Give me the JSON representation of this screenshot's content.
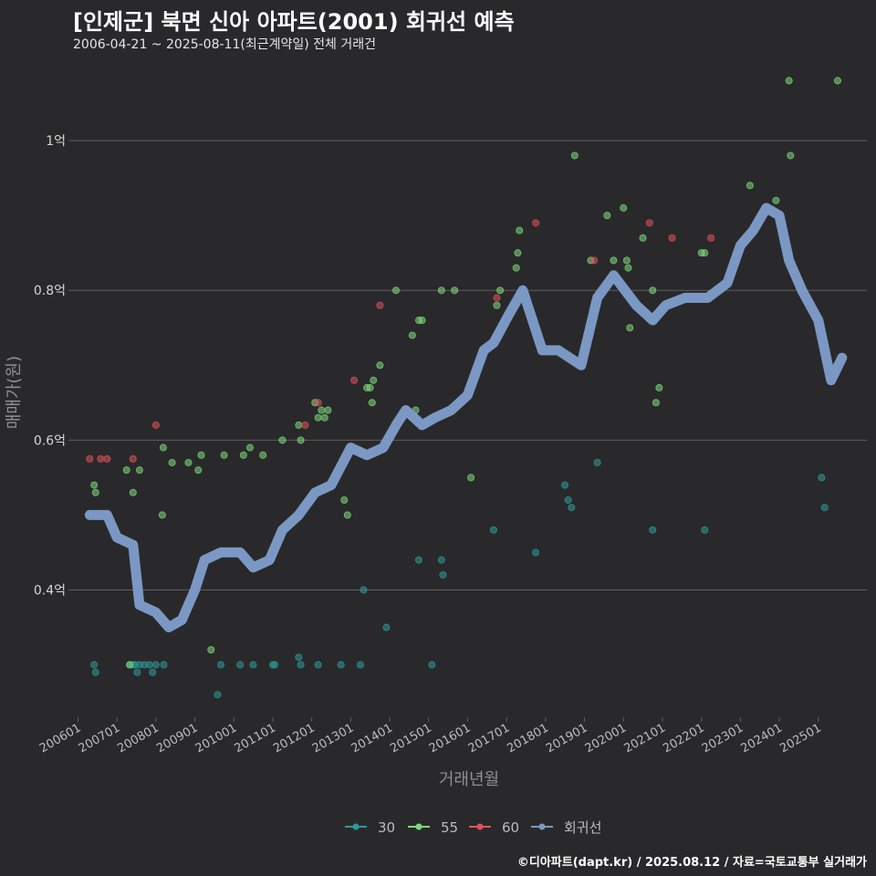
{
  "header": {
    "title": "[인제군] 북면 신아 아파트(2001) 회귀선 예측",
    "subtitle": "2006-04-21 ~ 2025-08-11(최근계약일) 전체 거래건"
  },
  "footer": {
    "credit": "©디아파트(dapt.kr) / 2025.08.12 / 자료=국토교통부 실거래가"
  },
  "colors": {
    "background": "#29292b",
    "grid": "#5e5e5e",
    "s30": "#2e9a95",
    "s55": "#7ed97a",
    "s60": "#e0525a",
    "regression": "#7b98c4"
  },
  "chart_data": {
    "type": "scatter",
    "title": "[인제군] 북면 신아 아파트(2001) 회귀선 예측",
    "subtitle": "2006-04-21 ~ 2025-08-11(최근계약일) 전체 거래건",
    "xlabel": "거래년월",
    "ylabel": "매매가(원)",
    "xlim": [
      "2005-11-15",
      "2026-04-01"
    ],
    "ylim": [
      0.23,
      1.1
    ],
    "yunit": "억",
    "yticks": [
      {
        "value": 0.4,
        "label": "0.4억"
      },
      {
        "value": 0.6,
        "label": "0.6억"
      },
      {
        "value": 0.8,
        "label": "0.8억"
      },
      {
        "value": 1.0,
        "label": "1억"
      }
    ],
    "xticks": [
      {
        "date": "2006-01-01",
        "label": "200601"
      },
      {
        "date": "2007-01-01",
        "label": "200701"
      },
      {
        "date": "2008-01-01",
        "label": "200801"
      },
      {
        "date": "2009-01-01",
        "label": "200901"
      },
      {
        "date": "2010-01-01",
        "label": "201001"
      },
      {
        "date": "2011-01-01",
        "label": "201101"
      },
      {
        "date": "2012-01-01",
        "label": "201201"
      },
      {
        "date": "2013-01-01",
        "label": "201301"
      },
      {
        "date": "2014-01-01",
        "label": "201401"
      },
      {
        "date": "2015-01-01",
        "label": "201501"
      },
      {
        "date": "2016-01-01",
        "label": "201601"
      },
      {
        "date": "2017-01-01",
        "label": "201701"
      },
      {
        "date": "2018-01-01",
        "label": "201801"
      },
      {
        "date": "2019-01-01",
        "label": "201901"
      },
      {
        "date": "2020-01-01",
        "label": "202001"
      },
      {
        "date": "2021-01-01",
        "label": "202101"
      },
      {
        "date": "2022-01-01",
        "label": "202201"
      },
      {
        "date": "2023-01-01",
        "label": "202301"
      },
      {
        "date": "2024-01-01",
        "label": "202401"
      },
      {
        "date": "2025-01-01",
        "label": "202501"
      }
    ],
    "grid": true,
    "legend_position": "bottom",
    "series": [
      {
        "name": "30",
        "kind": "points",
        "points": [
          [
            "2006-06-01",
            0.3
          ],
          [
            "2006-06-15",
            0.29
          ],
          [
            "2007-05-01",
            0.3
          ],
          [
            "2007-06-01",
            0.3
          ],
          [
            "2007-06-20",
            0.3
          ],
          [
            "2007-07-10",
            0.29
          ],
          [
            "2007-08-01",
            0.3
          ],
          [
            "2007-09-15",
            0.3
          ],
          [
            "2007-11-01",
            0.3
          ],
          [
            "2007-12-01",
            0.29
          ],
          [
            "2008-01-01",
            0.3
          ],
          [
            "2008-03-15",
            0.3
          ],
          [
            "2009-08-01",
            0.26
          ],
          [
            "2009-09-01",
            0.3
          ],
          [
            "2010-03-01",
            0.3
          ],
          [
            "2010-07-01",
            0.3
          ],
          [
            "2011-01-01",
            0.3
          ],
          [
            "2011-01-20",
            0.3
          ],
          [
            "2011-09-01",
            0.31
          ],
          [
            "2011-09-20",
            0.3
          ],
          [
            "2012-03-01",
            0.3
          ],
          [
            "2012-10-01",
            0.3
          ],
          [
            "2013-04-01",
            0.3
          ],
          [
            "2013-05-01",
            0.4
          ],
          [
            "2013-12-01",
            0.35
          ],
          [
            "2014-10-01",
            0.44
          ],
          [
            "2015-02-01",
            0.3
          ],
          [
            "2015-05-01",
            0.44
          ],
          [
            "2015-05-15",
            0.42
          ],
          [
            "2016-09-01",
            0.48
          ],
          [
            "2017-10-01",
            0.45
          ],
          [
            "2018-07-01",
            0.54
          ],
          [
            "2018-08-01",
            0.52
          ],
          [
            "2018-09-01",
            0.51
          ],
          [
            "2019-05-01",
            0.57
          ],
          [
            "2020-10-01",
            0.48
          ],
          [
            "2022-02-01",
            0.48
          ],
          [
            "2025-02-01",
            0.55
          ],
          [
            "2025-03-01",
            0.51
          ]
        ]
      },
      {
        "name": "55",
        "kind": "points",
        "points": [
          [
            "2006-06-01",
            0.54
          ],
          [
            "2006-06-15",
            0.53
          ],
          [
            "2006-10-01",
            0.5
          ],
          [
            "2007-04-01",
            0.56
          ],
          [
            "2007-06-01",
            0.53
          ],
          [
            "2007-08-01",
            0.56
          ],
          [
            "2007-05-01",
            0.3
          ],
          [
            "2008-03-01",
            0.5
          ],
          [
            "2008-03-10",
            0.59
          ],
          [
            "2008-06-01",
            0.57
          ],
          [
            "2008-11-01",
            0.57
          ],
          [
            "2009-02-01",
            0.56
          ],
          [
            "2009-03-01",
            0.58
          ],
          [
            "2009-06-01",
            0.32
          ],
          [
            "2009-10-01",
            0.58
          ],
          [
            "2010-04-01",
            0.58
          ],
          [
            "2010-06-01",
            0.59
          ],
          [
            "2010-10-01",
            0.58
          ],
          [
            "2011-04-01",
            0.6
          ],
          [
            "2011-09-01",
            0.62
          ],
          [
            "2011-09-20",
            0.6
          ],
          [
            "2012-02-01",
            0.65
          ],
          [
            "2012-03-01",
            0.63
          ],
          [
            "2012-04-01",
            0.64
          ],
          [
            "2012-05-01",
            0.63
          ],
          [
            "2012-06-01",
            0.64
          ],
          [
            "2012-11-01",
            0.52
          ],
          [
            "2012-12-01",
            0.5
          ],
          [
            "2013-06-01",
            0.67
          ],
          [
            "2013-07-01",
            0.67
          ],
          [
            "2013-07-20",
            0.65
          ],
          [
            "2013-08-01",
            0.68
          ],
          [
            "2013-10-01",
            0.7
          ],
          [
            "2014-03-01",
            0.8
          ],
          [
            "2014-08-01",
            0.74
          ],
          [
            "2014-09-01",
            0.64
          ],
          [
            "2014-10-01",
            0.76
          ],
          [
            "2014-11-01",
            0.76
          ],
          [
            "2015-05-01",
            0.8
          ],
          [
            "2015-09-01",
            0.8
          ],
          [
            "2016-02-01",
            0.55
          ],
          [
            "2016-10-01",
            0.78
          ],
          [
            "2016-11-01",
            0.8
          ],
          [
            "2017-04-01",
            0.83
          ],
          [
            "2017-04-15",
            0.85
          ],
          [
            "2017-05-01",
            0.88
          ],
          [
            "2018-10-01",
            0.98
          ],
          [
            "2019-03-01",
            0.84
          ],
          [
            "2019-08-01",
            0.9
          ],
          [
            "2019-10-01",
            0.84
          ],
          [
            "2020-01-01",
            0.91
          ],
          [
            "2020-02-01",
            0.84
          ],
          [
            "2020-02-15",
            0.83
          ],
          [
            "2020-03-01",
            0.75
          ],
          [
            "2020-07-01",
            0.87
          ],
          [
            "2020-10-01",
            0.8
          ],
          [
            "2020-11-01",
            0.65
          ],
          [
            "2020-12-01",
            0.67
          ],
          [
            "2022-01-01",
            0.85
          ],
          [
            "2022-02-01",
            0.85
          ],
          [
            "2023-04-01",
            0.94
          ],
          [
            "2023-12-01",
            0.92
          ],
          [
            "2023-12-15",
            0.9
          ],
          [
            "2024-04-01",
            1.08
          ],
          [
            "2024-04-15",
            0.98
          ],
          [
            "2025-07-01",
            1.08
          ]
        ]
      },
      {
        "name": "60",
        "kind": "points",
        "points": [
          [
            "2006-04-21",
            0.575
          ],
          [
            "2006-08-01",
            0.575
          ],
          [
            "2006-10-01",
            0.575
          ],
          [
            "2007-06-01",
            0.575
          ],
          [
            "2008-01-01",
            0.62
          ],
          [
            "2011-11-01",
            0.62
          ],
          [
            "2012-03-01",
            0.65
          ],
          [
            "2013-02-01",
            0.68
          ],
          [
            "2013-10-01",
            0.78
          ],
          [
            "2016-10-01",
            0.79
          ],
          [
            "2017-10-01",
            0.89
          ],
          [
            "2019-04-01",
            0.84
          ],
          [
            "2020-09-01",
            0.89
          ],
          [
            "2021-04-01",
            0.87
          ],
          [
            "2022-04-01",
            0.87
          ]
        ]
      },
      {
        "name": "회귀선",
        "kind": "line",
        "points": [
          [
            "2006-04-21",
            0.5
          ],
          [
            "2006-10-01",
            0.5
          ],
          [
            "2007-01-01",
            0.47
          ],
          [
            "2007-06-01",
            0.46
          ],
          [
            "2007-08-01",
            0.38
          ],
          [
            "2008-01-01",
            0.37
          ],
          [
            "2008-05-01",
            0.35
          ],
          [
            "2008-09-01",
            0.36
          ],
          [
            "2009-01-01",
            0.4
          ],
          [
            "2009-04-01",
            0.44
          ],
          [
            "2009-09-01",
            0.45
          ],
          [
            "2010-03-01",
            0.45
          ],
          [
            "2010-07-01",
            0.43
          ],
          [
            "2010-12-01",
            0.44
          ],
          [
            "2011-04-01",
            0.48
          ],
          [
            "2011-09-01",
            0.5
          ],
          [
            "2012-02-01",
            0.53
          ],
          [
            "2012-07-01",
            0.54
          ],
          [
            "2013-01-01",
            0.59
          ],
          [
            "2013-06-01",
            0.58
          ],
          [
            "2013-11-01",
            0.59
          ],
          [
            "2014-03-01",
            0.62
          ],
          [
            "2014-06-01",
            0.64
          ],
          [
            "2014-11-01",
            0.62
          ],
          [
            "2015-03-01",
            0.63
          ],
          [
            "2015-08-01",
            0.64
          ],
          [
            "2016-01-01",
            0.66
          ],
          [
            "2016-06-01",
            0.72
          ],
          [
            "2016-09-01",
            0.73
          ],
          [
            "2017-02-01",
            0.77
          ],
          [
            "2017-06-01",
            0.8
          ],
          [
            "2017-12-01",
            0.72
          ],
          [
            "2018-05-01",
            0.72
          ],
          [
            "2018-12-01",
            0.7
          ],
          [
            "2019-05-01",
            0.79
          ],
          [
            "2019-10-01",
            0.82
          ],
          [
            "2020-05-01",
            0.78
          ],
          [
            "2020-10-01",
            0.76
          ],
          [
            "2021-02-01",
            0.78
          ],
          [
            "2021-08-01",
            0.79
          ],
          [
            "2022-03-01",
            0.79
          ],
          [
            "2022-09-01",
            0.81
          ],
          [
            "2023-01-01",
            0.86
          ],
          [
            "2023-05-01",
            0.88
          ],
          [
            "2023-09-01",
            0.91
          ],
          [
            "2024-01-01",
            0.9
          ],
          [
            "2024-04-01",
            0.84
          ],
          [
            "2024-08-01",
            0.8
          ],
          [
            "2025-01-01",
            0.76
          ],
          [
            "2025-05-01",
            0.68
          ],
          [
            "2025-08-11",
            0.71
          ]
        ]
      }
    ]
  }
}
